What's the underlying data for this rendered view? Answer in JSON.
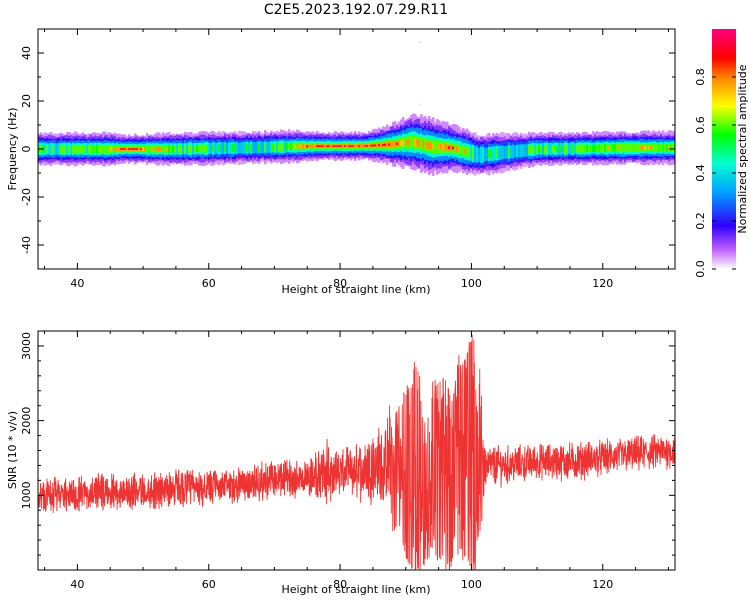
{
  "title": "C2E5.2023.192.07.29.R11",
  "chart_data": [
    {
      "type": "heatmap",
      "xlabel": "Height of straight line (km)",
      "ylabel": "Frequency (Hz)",
      "xlim": [
        34,
        131
      ],
      "ylim": [
        -50,
        50
      ],
      "x_ticks": [
        40,
        60,
        80,
        100,
        120
      ],
      "y_ticks": [
        40,
        20,
        0,
        -20,
        -40
      ],
      "description_points": [
        {
          "x": 35,
          "half_width": 3.5,
          "center": 0.0,
          "peak": 0.55
        },
        {
          "x": 45,
          "half_width": 3.5,
          "center": 0.0,
          "peak": 0.65
        },
        {
          "x": 47,
          "half_width": 3.0,
          "center": 0.0,
          "peak": 0.95
        },
        {
          "x": 55,
          "half_width": 3.5,
          "center": 0.0,
          "peak": 0.6
        },
        {
          "x": 65,
          "half_width": 3.5,
          "center": 0.5,
          "peak": 0.5
        },
        {
          "x": 72,
          "half_width": 3.5,
          "center": 1.0,
          "peak": 0.6
        },
        {
          "x": 77,
          "half_width": 3.0,
          "center": 1.2,
          "peak": 0.95
        },
        {
          "x": 80,
          "half_width": 3.0,
          "center": 1.2,
          "peak": 0.95
        },
        {
          "x": 84,
          "half_width": 3.0,
          "center": 1.3,
          "peak": 0.95
        },
        {
          "x": 88,
          "half_width": 4.5,
          "center": 2.0,
          "peak": 0.9
        },
        {
          "x": 91,
          "half_width": 6.0,
          "center": 3.0,
          "peak": 0.7
        },
        {
          "x": 94,
          "half_width": 6.0,
          "center": 1.0,
          "peak": 0.8
        },
        {
          "x": 97,
          "half_width": 5.0,
          "center": 0.5,
          "peak": 0.85
        },
        {
          "x": 101,
          "half_width": 4.5,
          "center": -2.5,
          "peak": 0.5
        },
        {
          "x": 110,
          "half_width": 3.5,
          "center": 0.0,
          "peak": 0.55
        },
        {
          "x": 125,
          "half_width": 3.5,
          "center": 0.5,
          "peak": 0.7
        },
        {
          "x": 131,
          "half_width": 3.5,
          "center": 0.5,
          "peak": 0.65
        }
      ],
      "colorbar": {
        "label": "Normalized spectral amplitude",
        "range": [
          0.0,
          1.0
        ],
        "ticks": [
          0.0,
          0.2,
          0.4,
          0.6,
          0.8
        ],
        "tick_labels": [
          "0.0",
          "0.2",
          "0.4",
          "0.6",
          "0.8"
        ],
        "colormap": [
          "#ffffff",
          "#b000ff",
          "#0000ff",
          "#00ffff",
          "#00ff00",
          "#ffff00",
          "#ff0000",
          "#ff0080"
        ]
      }
    },
    {
      "type": "line",
      "xlabel": "Height of straight line (km)",
      "ylabel": "SNR (10 * v/v)",
      "xlim": [
        34,
        131
      ],
      "ylim": [
        0,
        3200
      ],
      "x_ticks": [
        40,
        60,
        80,
        100,
        120
      ],
      "y_ticks": [
        1000,
        2000,
        3000
      ],
      "grid": false,
      "series": [
        {
          "color": "#ee3333",
          "x": [
            34,
            40,
            45,
            50,
            55,
            60,
            65,
            70,
            75,
            78,
            80,
            82,
            85,
            87,
            88,
            89,
            90,
            91,
            92,
            93,
            94,
            95,
            96,
            97,
            98,
            99,
            100,
            101,
            102,
            105,
            110,
            115,
            120,
            125,
            131
          ],
          "y": [
            1000,
            1000,
            1050,
            1050,
            1100,
            1100,
            1150,
            1200,
            1250,
            1300,
            1300,
            1300,
            1400,
            1400,
            1500,
            1700,
            1300,
            1600,
            1000,
            700,
            1800,
            1300,
            1600,
            1100,
            1800,
            1300,
            500,
            2100,
            1400,
            1400,
            1450,
            1450,
            1500,
            1550,
            1600
          ],
          "envelope_hi": [
            1200,
            1250,
            1300,
            1300,
            1350,
            1350,
            1400,
            1450,
            1500,
            1700,
            1650,
            1650,
            1900,
            2000,
            2050,
            2200,
            2450,
            2900,
            2700,
            2000,
            2600,
            2500,
            2600,
            2300,
            2900,
            2800,
            3200,
            3200,
            1700,
            1700,
            1700,
            1750,
            1750,
            1800,
            1850
          ],
          "envelope_lo": [
            750,
            800,
            800,
            850,
            850,
            900,
            950,
            950,
            1000,
            900,
            1050,
            1000,
            1000,
            900,
            500,
            600,
            150,
            0,
            0,
            0,
            300,
            100,
            0,
            0,
            200,
            100,
            0,
            0,
            1150,
            1200,
            1250,
            1250,
            1300,
            1350,
            1400
          ]
        }
      ]
    }
  ]
}
